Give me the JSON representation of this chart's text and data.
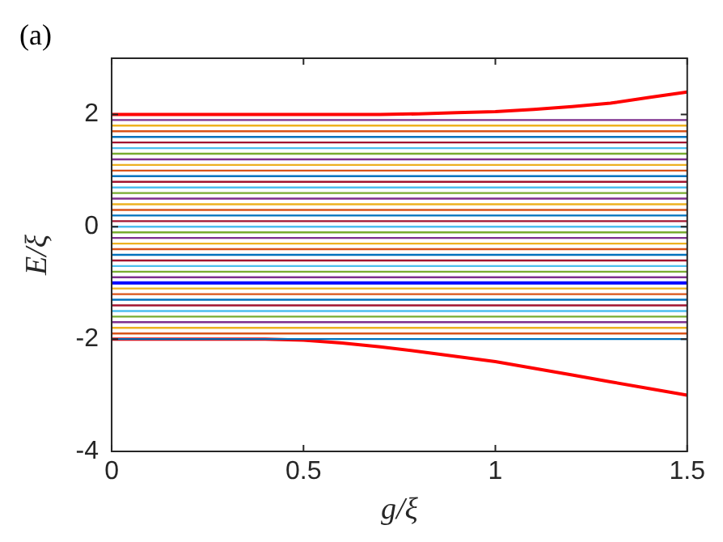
{
  "chart_data": {
    "type": "line",
    "xlabel": "g/ξ",
    "ylabel": "E/ξ",
    "annotations": [
      "(a)"
    ],
    "xlim": [
      0,
      1.5
    ],
    "xticks": [
      0,
      0.5,
      1,
      1.5
    ],
    "ylim": [
      -4,
      3
    ],
    "yticks": [
      -4,
      -2,
      0,
      2
    ],
    "grid": false,
    "legend": false,
    "marker": "none",
    "line_style": "solid",
    "series": [
      {
        "x": [
          0,
          1.5
        ],
        "values": [
          -2,
          -2
        ],
        "color": "#0072bd"
      },
      {
        "x": [
          0,
          1.5
        ],
        "values": [
          -1.9,
          -1.9
        ],
        "color": "#d95319"
      },
      {
        "x": [
          0,
          1.5
        ],
        "values": [
          -1.8,
          -1.8
        ],
        "color": "#edb120"
      },
      {
        "x": [
          0,
          1.5
        ],
        "values": [
          -1.7,
          -1.7
        ],
        "color": "#7e2f8e"
      },
      {
        "x": [
          0,
          1.5
        ],
        "values": [
          -1.6,
          -1.6
        ],
        "color": "#77ac30"
      },
      {
        "x": [
          0,
          1.5
        ],
        "values": [
          -1.5,
          -1.5
        ],
        "color": "#4dbeee"
      },
      {
        "x": [
          0,
          1.5
        ],
        "values": [
          -1.4,
          -1.4
        ],
        "color": "#a2142f"
      },
      {
        "x": [
          0,
          1.5
        ],
        "values": [
          -1.3,
          -1.3
        ],
        "color": "#0072bd"
      },
      {
        "x": [
          0,
          1.5
        ],
        "values": [
          -1.2,
          -1.2
        ],
        "color": "#d95319"
      },
      {
        "x": [
          0,
          1.5
        ],
        "values": [
          -1.1,
          -1.1
        ],
        "color": "#edb120"
      },
      {
        "x": [
          0,
          1.5
        ],
        "values": [
          -0.9,
          -0.9
        ],
        "color": "#7e2f8e"
      },
      {
        "x": [
          0,
          1.5
        ],
        "values": [
          -0.8,
          -0.8
        ],
        "color": "#77ac30"
      },
      {
        "x": [
          0,
          1.5
        ],
        "values": [
          -0.7,
          -0.7
        ],
        "color": "#4dbeee"
      },
      {
        "x": [
          0,
          1.5
        ],
        "values": [
          -0.6,
          -0.6
        ],
        "color": "#a2142f"
      },
      {
        "x": [
          0,
          1.5
        ],
        "values": [
          -0.5,
          -0.5
        ],
        "color": "#0072bd"
      },
      {
        "x": [
          0,
          1.5
        ],
        "values": [
          -0.4,
          -0.4
        ],
        "color": "#d95319"
      },
      {
        "x": [
          0,
          1.5
        ],
        "values": [
          -0.3,
          -0.3
        ],
        "color": "#edb120"
      },
      {
        "x": [
          0,
          1.5
        ],
        "values": [
          -0.2,
          -0.2
        ],
        "color": "#7e2f8e"
      },
      {
        "x": [
          0,
          1.5
        ],
        "values": [
          -0.1,
          -0.1
        ],
        "color": "#77ac30"
      },
      {
        "x": [
          0,
          1.5
        ],
        "values": [
          0,
          0
        ],
        "color": "#4dbeee"
      },
      {
        "x": [
          0,
          1.5
        ],
        "values": [
          0.1,
          0.1
        ],
        "color": "#a2142f"
      },
      {
        "x": [
          0,
          1.5
        ],
        "values": [
          0.2,
          0.2
        ],
        "color": "#0072bd"
      },
      {
        "x": [
          0,
          1.5
        ],
        "values": [
          0.3,
          0.3
        ],
        "color": "#d95319"
      },
      {
        "x": [
          0,
          1.5
        ],
        "values": [
          0.4,
          0.4
        ],
        "color": "#edb120"
      },
      {
        "x": [
          0,
          1.5
        ],
        "values": [
          0.5,
          0.5
        ],
        "color": "#7e2f8e"
      },
      {
        "x": [
          0,
          1.5
        ],
        "values": [
          0.6,
          0.6
        ],
        "color": "#77ac30"
      },
      {
        "x": [
          0,
          1.5
        ],
        "values": [
          0.7,
          0.7
        ],
        "color": "#4dbeee"
      },
      {
        "x": [
          0,
          1.5
        ],
        "values": [
          0.8,
          0.8
        ],
        "color": "#a2142f"
      },
      {
        "x": [
          0,
          1.5
        ],
        "values": [
          0.9,
          0.9
        ],
        "color": "#0072bd"
      },
      {
        "x": [
          0,
          1.5
        ],
        "values": [
          1,
          1
        ],
        "color": "#d95319"
      },
      {
        "x": [
          0,
          1.5
        ],
        "values": [
          1.1,
          1.1
        ],
        "color": "#edb120"
      },
      {
        "x": [
          0,
          1.5
        ],
        "values": [
          1.2,
          1.2
        ],
        "color": "#7e2f8e"
      },
      {
        "x": [
          0,
          1.5
        ],
        "values": [
          1.3,
          1.3
        ],
        "color": "#77ac30"
      },
      {
        "x": [
          0,
          1.5
        ],
        "values": [
          1.4,
          1.4
        ],
        "color": "#4dbeee"
      },
      {
        "x": [
          0,
          1.5
        ],
        "values": [
          1.5,
          1.5
        ],
        "color": "#a2142f"
      },
      {
        "x": [
          0,
          1.5
        ],
        "values": [
          1.6,
          1.6
        ],
        "color": "#0072bd"
      },
      {
        "x": [
          0,
          1.5
        ],
        "values": [
          1.7,
          1.7
        ],
        "color": "#d95319"
      },
      {
        "x": [
          0,
          1.5
        ],
        "values": [
          1.8,
          1.8
        ],
        "color": "#edb120"
      },
      {
        "x": [
          0,
          1.5
        ],
        "values": [
          1.9,
          1.9
        ],
        "color": "#7e2f8e"
      },
      {
        "x": [
          0,
          1.5
        ],
        "values": [
          -1,
          -1
        ],
        "color": "#0000ff"
      },
      {
        "x": [
          0,
          0.25,
          0.5,
          0.6,
          0.7,
          0.8,
          0.9,
          1,
          1.1,
          1.2,
          1.3,
          1.4,
          1.5
        ],
        "values": [
          2,
          2,
          2,
          2,
          2,
          2.01,
          2.03,
          2.05,
          2.09,
          2.14,
          2.2,
          2.3,
          2.4
        ],
        "color": "#ff0000"
      },
      {
        "x": [
          0,
          0.25,
          0.4,
          0.5,
          0.6,
          0.7,
          0.8,
          0.9,
          1,
          1.1,
          1.2,
          1.3,
          1.4,
          1.5
        ],
        "values": [
          -2,
          -2,
          -2,
          -2.02,
          -2.07,
          -2.14,
          -2.22,
          -2.31,
          -2.4,
          -2.52,
          -2.64,
          -2.76,
          -2.88,
          -3
        ],
        "color": "#ff0000"
      }
    ]
  }
}
